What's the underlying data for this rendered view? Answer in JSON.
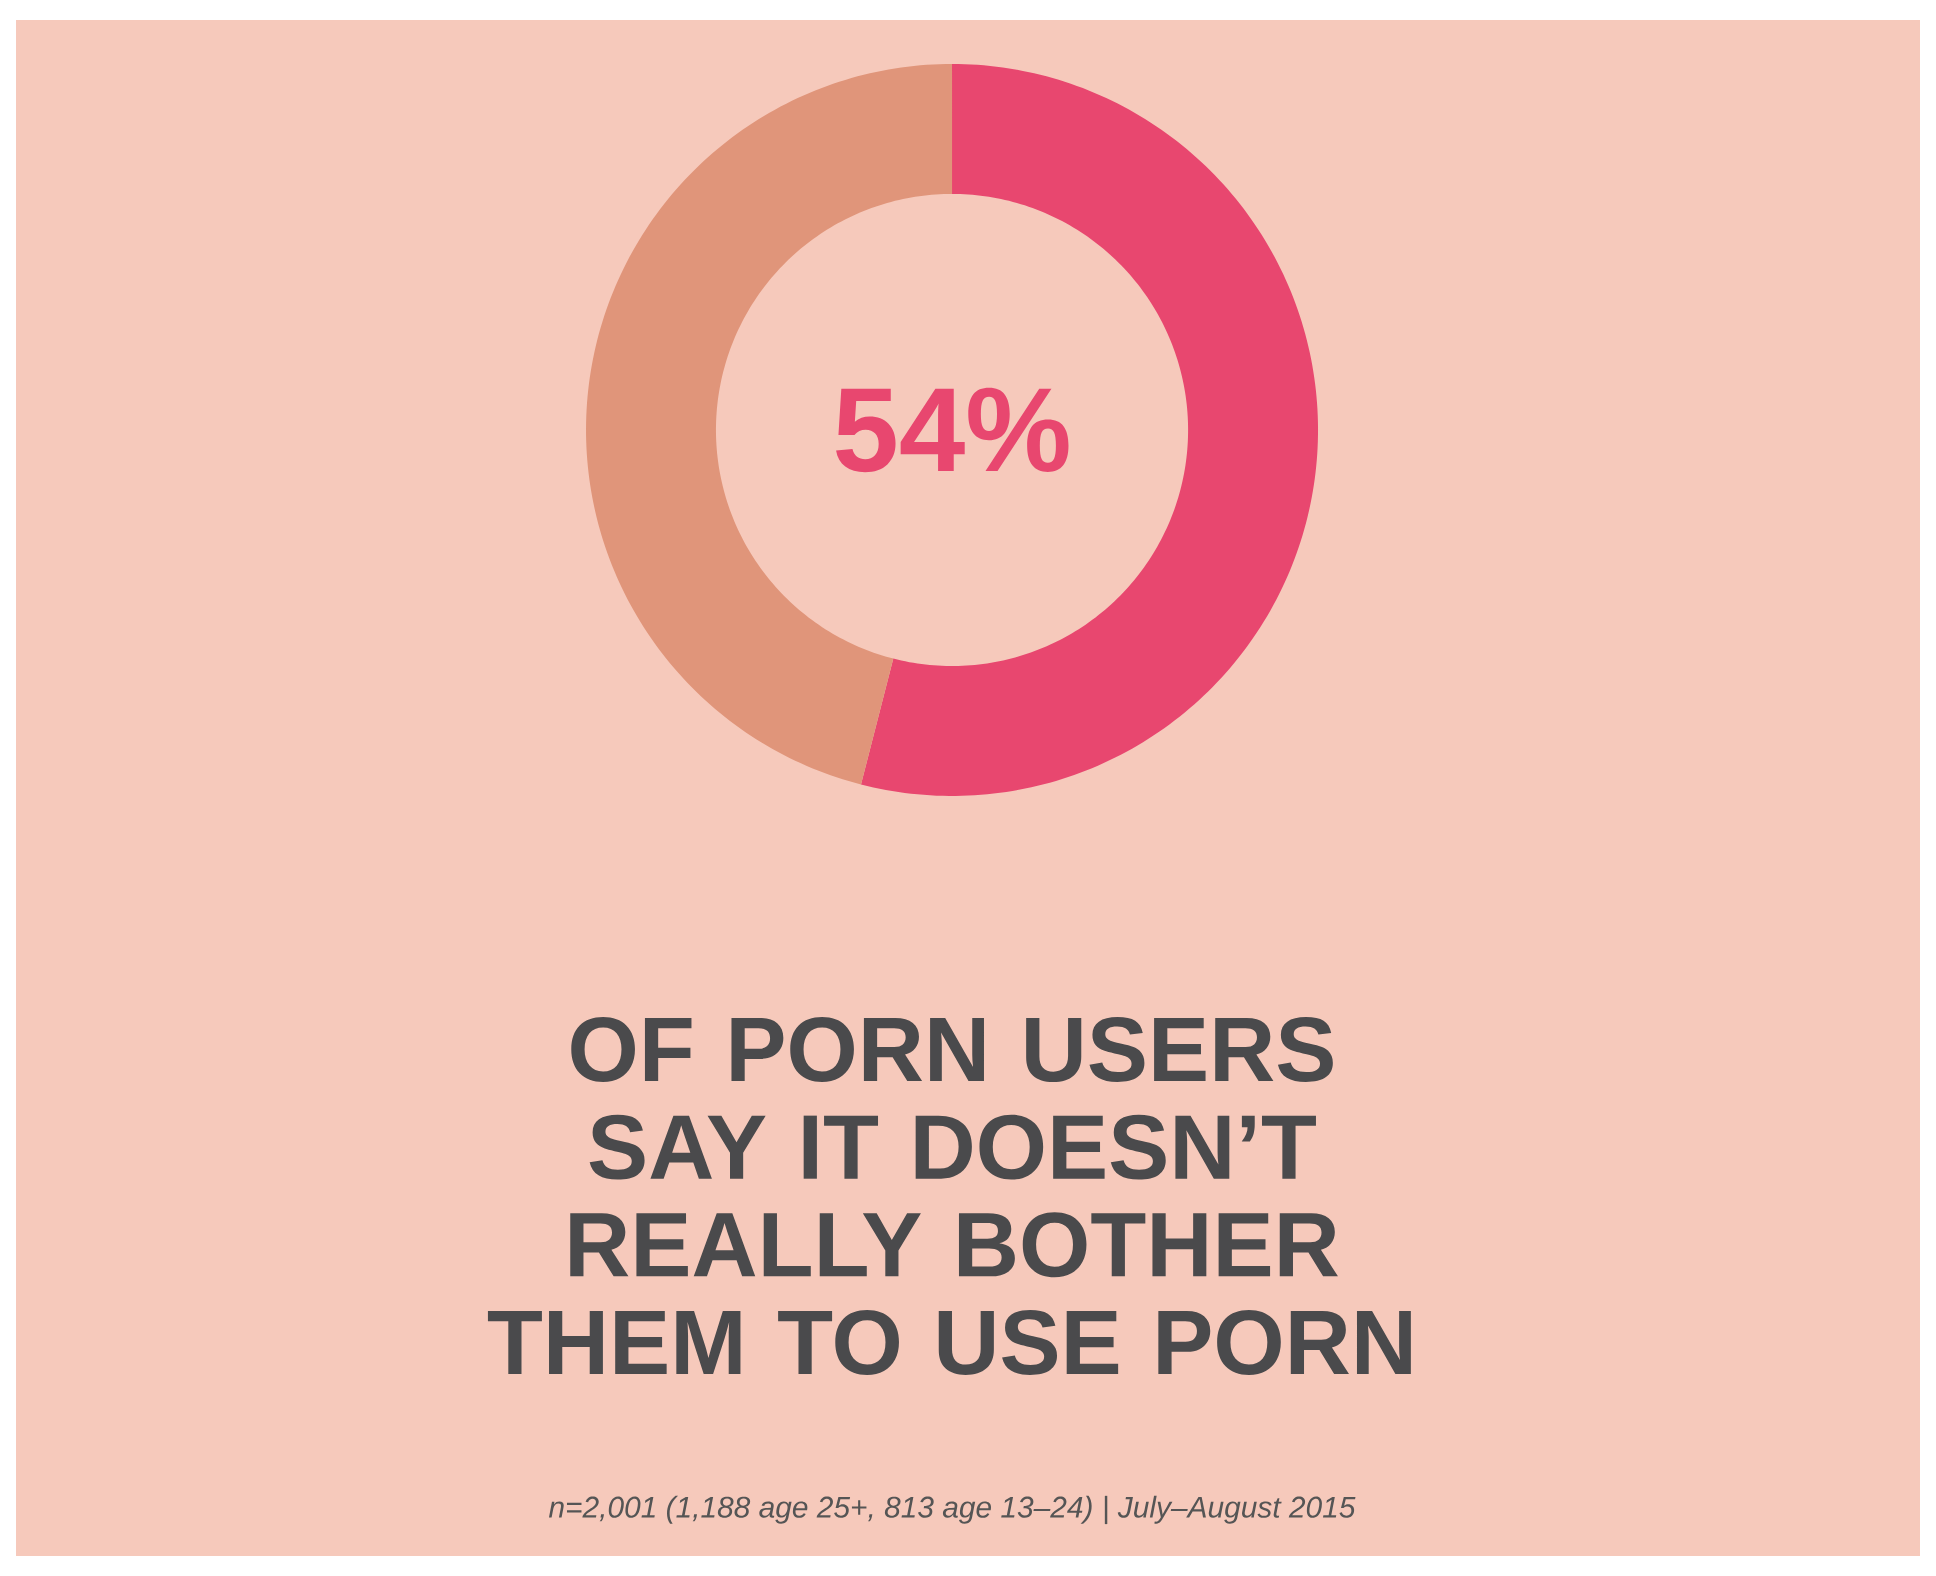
{
  "chart_data": {
    "type": "donut",
    "title": "OF PORN USERS SAY IT DOESN’T REALLY BOTHER THEM TO USE PORN",
    "categories": [
      null,
      null
    ],
    "values": [
      54,
      46
    ],
    "colors": [
      "#e8476f",
      "#e0957a"
    ],
    "value_labels": [
      "54%",
      null
    ],
    "annotations": [
      "n=2,001 (1,188 age 25+, 813 age 13–24)  |  July–August 2015"
    ]
  }
}
